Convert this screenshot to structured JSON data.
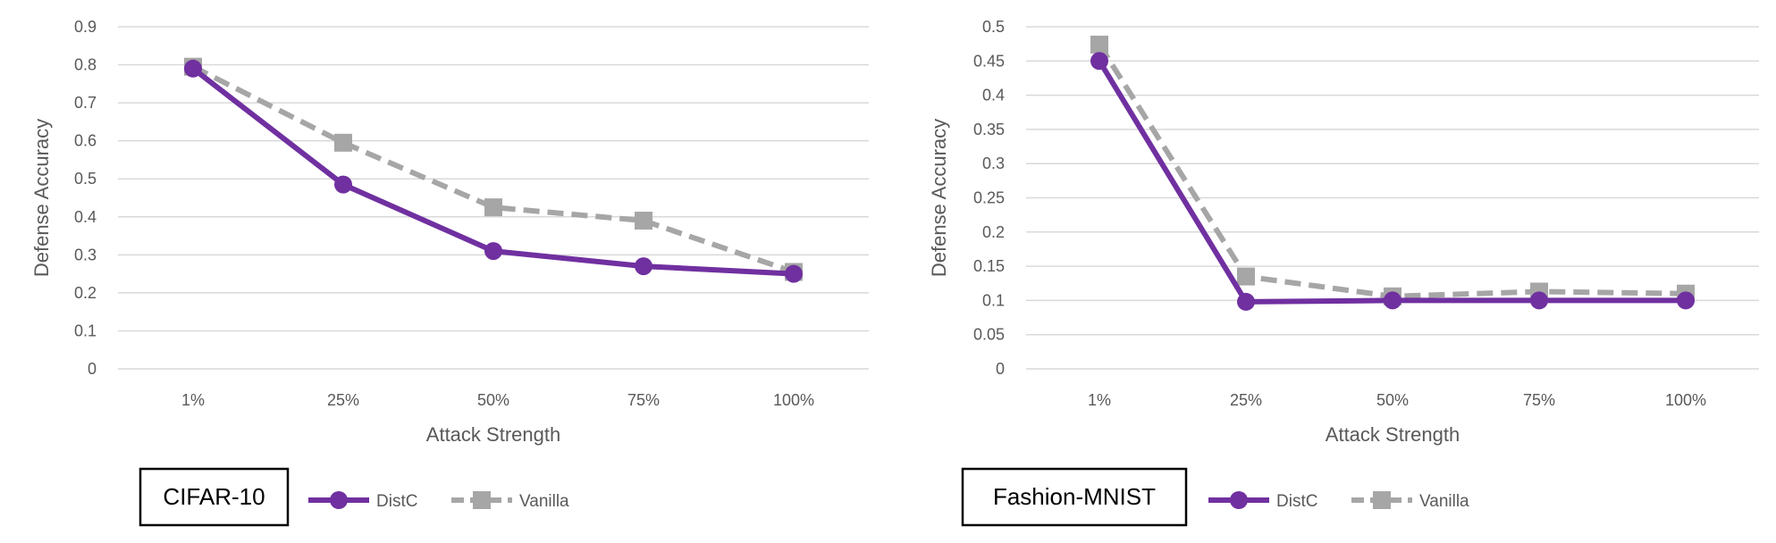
{
  "colors": {
    "distc": "#7030A0",
    "vanilla": "#A6A6A6",
    "grid": "#D9D9D9",
    "text": "#595959",
    "box_border": "#000000"
  },
  "chart_data": [
    {
      "type": "line",
      "dataset_label": "CIFAR-10",
      "xlabel": "Attack Strength",
      "ylabel": "Defense Accuracy",
      "categories": [
        "1%",
        "25%",
        "50%",
        "75%",
        "100%"
      ],
      "ylim": [
        0,
        0.9
      ],
      "yticks": [
        "0",
        "0.1",
        "0.2",
        "0.3",
        "0.4",
        "0.5",
        "0.6",
        "0.7",
        "0.8",
        "0.9"
      ],
      "grid": true,
      "legend_position": "bottom",
      "series": [
        {
          "name": "DistC",
          "marker": "circle",
          "style": "solid",
          "values": [
            0.79,
            0.485,
            0.31,
            0.27,
            0.25
          ]
        },
        {
          "name": "Vanilla",
          "marker": "square",
          "style": "dashed",
          "values": [
            0.795,
            0.595,
            0.425,
            0.39,
            0.255
          ]
        }
      ]
    },
    {
      "type": "line",
      "dataset_label": "Fashion-MNIST",
      "xlabel": "Attack Strength",
      "ylabel": "Defense Accuracy",
      "categories": [
        "1%",
        "25%",
        "50%",
        "75%",
        "100%"
      ],
      "ylim": [
        0,
        0.5
      ],
      "yticks": [
        "0",
        "0.05",
        "0.1",
        "0.15",
        "0.2",
        "0.25",
        "0.3",
        "0.35",
        "0.4",
        "0.45",
        "0.5"
      ],
      "grid": true,
      "legend_position": "bottom",
      "series": [
        {
          "name": "DistC",
          "marker": "circle",
          "style": "solid",
          "values": [
            0.45,
            0.098,
            0.1,
            0.1,
            0.1
          ]
        },
        {
          "name": "Vanilla",
          "marker": "square",
          "style": "dashed",
          "values": [
            0.474,
            0.135,
            0.106,
            0.113,
            0.11
          ]
        }
      ]
    }
  ]
}
